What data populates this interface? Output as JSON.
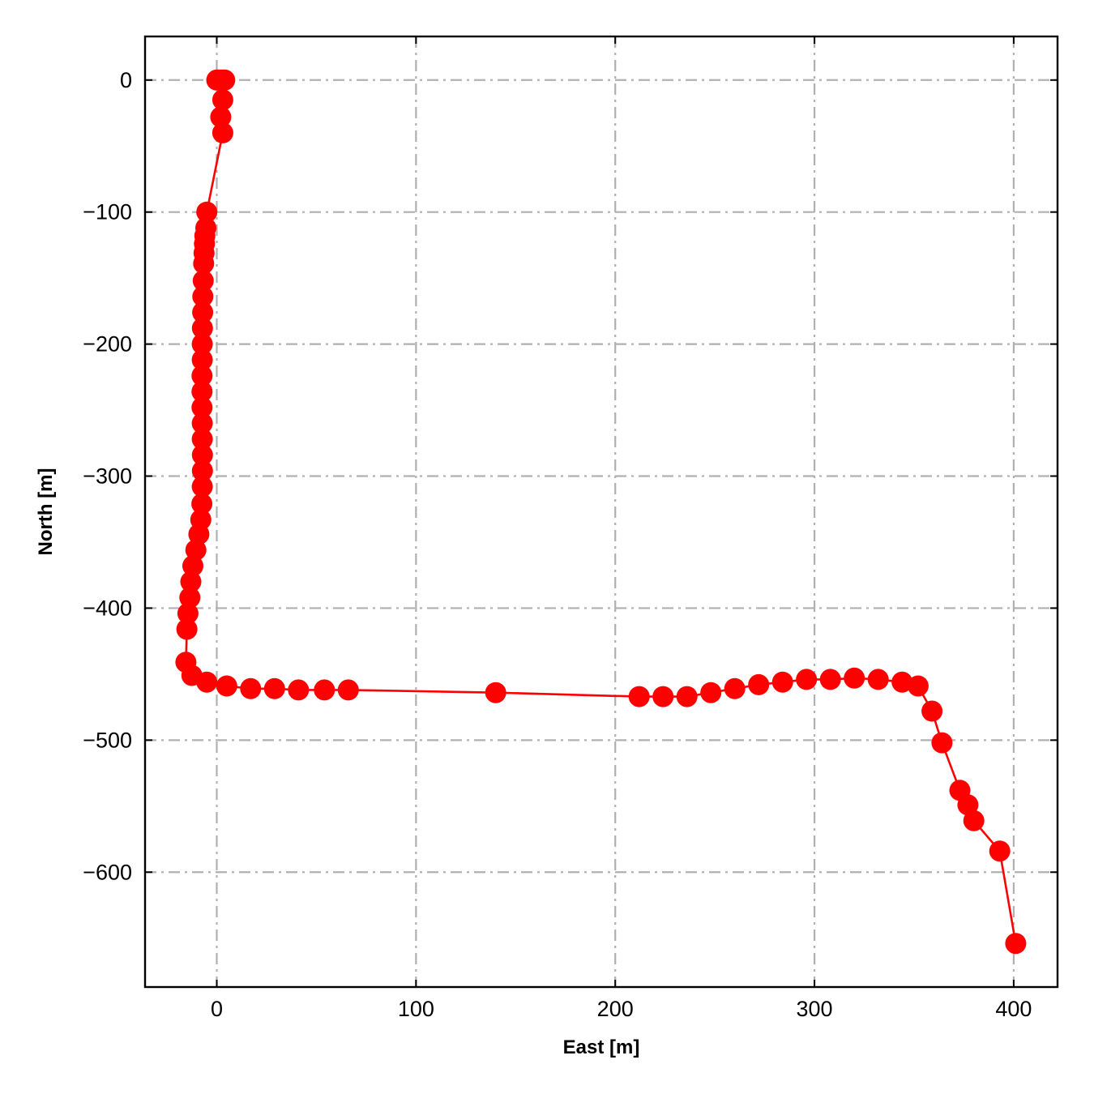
{
  "chart_data": {
    "type": "line",
    "title": "",
    "xlabel": "East [m]",
    "ylabel": "North [m]",
    "xlim": [
      -36,
      422
    ],
    "ylim": [
      -687,
      33
    ],
    "xticks": [
      0,
      100,
      200,
      300,
      400
    ],
    "yticks": [
      0,
      -100,
      -200,
      -300,
      -400,
      -500,
      -600
    ],
    "xtick_labels": [
      "0",
      "100",
      "200",
      "300",
      "400"
    ],
    "ytick_labels": [
      "0",
      "−100",
      "−200",
      "−300",
      "−400",
      "−500",
      "−600"
    ],
    "grid": true,
    "legend": "none",
    "series": [
      {
        "color": "#ff0000",
        "marker": "circle",
        "x": [
          0,
          1,
          2,
          3,
          4,
          3,
          2,
          3,
          -5,
          -5.5,
          -6,
          -6.2,
          -6.4,
          -6.6,
          -6.8,
          -7,
          -7.1,
          -7.2,
          -7.3,
          -7.3,
          -7.4,
          -7.4,
          -7.4,
          -7.3,
          -7.3,
          -7.2,
          -7.2,
          -7.3,
          -7.5,
          -8,
          -9,
          -10.5,
          -12,
          -13,
          -13.5,
          -14.5,
          -15,
          -15.5,
          -12.5,
          -5,
          5,
          17,
          29,
          41,
          54,
          66,
          140,
          212,
          224,
          236,
          248,
          260,
          272,
          284,
          296,
          308,
          320,
          332,
          344,
          352,
          359,
          364,
          373,
          377,
          380,
          393,
          401
        ],
        "y": [
          0,
          0,
          0,
          0,
          0,
          -15,
          -28,
          -40,
          -100,
          -112,
          -118,
          -124,
          -131,
          -139,
          -152,
          -164,
          -176,
          -188,
          -200,
          -212,
          -224,
          -236,
          -248,
          -260,
          -272,
          -284,
          -296,
          -308,
          -321,
          -333,
          -344,
          -356,
          -368,
          -380,
          -392,
          -404,
          -416,
          -441,
          -451,
          -456,
          -459,
          -461,
          -461,
          -462,
          -462,
          -462,
          -464,
          -467,
          -467,
          -467,
          -464,
          -461,
          -458,
          -456,
          -454,
          -454,
          -453,
          -454,
          -456,
          -459,
          -478,
          -502,
          -538,
          -549,
          -561,
          -584,
          -654
        ]
      }
    ]
  }
}
